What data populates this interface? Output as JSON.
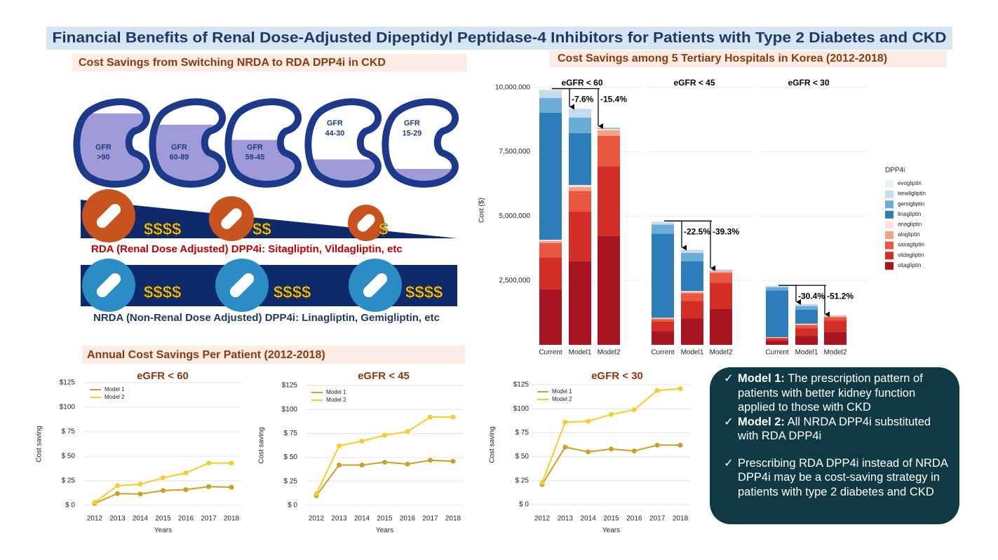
{
  "title": "Financial Benefits of Renal Dose-Adjusted Dipeptidyl Peptidase-4 Inhibitors for Patients with Type 2 Diabetes and CKD",
  "left_header": "Cost Savings from Switching NRDA to RDA DPP4i in CKD",
  "kidneys": [
    [
      "GFR",
      ">90"
    ],
    [
      "GFR",
      "60-89"
    ],
    [
      "GFR",
      "59-45"
    ],
    [
      "GFR",
      "44-30"
    ],
    [
      "GFR",
      "15-29"
    ]
  ],
  "rda_prices": [
    "$$$$",
    "$$",
    "$"
  ],
  "rda_caption": "RDA (Renal Dose Adjusted) DPP4i: Sitagliptin, Vildagliptin, etc",
  "nrda_prices": [
    "$$$$",
    "$$$$",
    "$$$$"
  ],
  "nrda_caption": "NRDA (Non-Renal Dose Adjusted) DPP4i: Linagliptin, Gemigliptin, etc",
  "bottom_header": "Annual Cost Savings Per Patient (2012-2018)",
  "notes": [
    {
      "label": "Model 1:",
      "text": "The prescription pattern of patients with better kidney function applied to those with CKD"
    },
    {
      "label": "Model 2:",
      "text": "All NRDA DPP4i substituted with RDA DPP4i"
    },
    {
      "text": "Prescribing RDA DPP4i instead of NRDA DPP4i may be a cost-saving strategy in patients with type 2 diabetes and CKD"
    }
  ],
  "chart_data": [
    {
      "type": "stacked-bar",
      "title": "Cost Savings among 5 Tertiary Hospitals in Korea (2012-2018)",
      "y_label": "Cost ($)",
      "legend_title": "DPP4i",
      "panels": [
        "eGFR  < 60",
        "eGFR  < 45",
        "eGFR  < 30"
      ],
      "categories": [
        "Current",
        "Model1",
        "Model2",
        "Current",
        "Model1",
        "Model2",
        "Current",
        "Model1",
        "Model2"
      ],
      "change_labels": [
        null,
        "-7.6%",
        "-15.4%",
        null,
        "-22.5%",
        "-39.3%",
        null,
        "-30.4%",
        "-51.2%"
      ],
      "ylim": [
        0,
        10400000
      ],
      "yticks": [
        {
          "value": 2500000,
          "label": "2,500,000"
        },
        {
          "value": 5000000,
          "label": "5,000,000"
        },
        {
          "value": 7500000,
          "label": "7,500,000"
        },
        {
          "value": 10000000,
          "label": "10,000,000"
        }
      ],
      "grid": true,
      "series": [
        {
          "name": "sitagliptin",
          "color": "#a8141f",
          "values": [
            2150000,
            3260000,
            4240000,
            540000,
            1030000,
            1410000,
            150000,
            350000,
            500000
          ]
        },
        {
          "name": "vildagliptin",
          "color": "#d42f26",
          "values": [
            1250000,
            1930000,
            2690000,
            360000,
            670000,
            1010000,
            100000,
            300000,
            450000
          ]
        },
        {
          "name": "saxagliptin",
          "color": "#e9573f",
          "values": [
            550000,
            790000,
            1190000,
            100000,
            300000,
            380000,
            30000,
            120000,
            130000
          ]
        },
        {
          "name": "alogliptin",
          "color": "#f4a384",
          "values": [
            80000,
            150000,
            220000,
            20000,
            50000,
            60000,
            10000,
            30000,
            30000
          ]
        },
        {
          "name": "anagliptin",
          "color": "#fce3dc",
          "values": [
            50000,
            80000,
            60000,
            30000,
            40000,
            30000,
            10000,
            20000,
            10000
          ]
        },
        {
          "name": "linagliptin",
          "color": "#2e7dbb",
          "values": [
            4940000,
            2020000,
            20000,
            3270000,
            1160000,
            10000,
            1820000,
            550000,
            10000
          ]
        },
        {
          "name": "gemigliptin",
          "color": "#6badd6",
          "values": [
            570000,
            600000,
            10000,
            350000,
            320000,
            10000,
            120000,
            140000,
            0
          ]
        },
        {
          "name": "teneligliptin",
          "color": "#c5dbee",
          "values": [
            300000,
            330000,
            10000,
            100000,
            110000,
            10000,
            50000,
            70000,
            0
          ]
        },
        {
          "name": "evogliptin",
          "color": "#ebf0f6",
          "values": [
            60000,
            30000,
            0,
            40000,
            40000,
            0,
            20000,
            30000,
            0
          ]
        }
      ]
    },
    {
      "type": "line",
      "title": "eGFR < 60",
      "x_label": "Years",
      "y_label": "Cost saving",
      "x": [
        2012,
        2013,
        2014,
        2015,
        2016,
        2017,
        2018
      ],
      "xlim": [
        2012,
        2018
      ],
      "xticks": [
        2012,
        2013,
        2014,
        2015,
        2016,
        2017,
        2018
      ],
      "ylim": [
        0,
        125
      ],
      "yticks": [
        {
          "value": 0,
          "label": "$ 0"
        },
        {
          "value": 25,
          "label": "$ 25"
        },
        {
          "value": 50,
          "label": "$ 50"
        },
        {
          "value": 75,
          "label": "$ 75"
        },
        {
          "value": 100,
          "label": "$100"
        },
        {
          "value": 125,
          "label": "$125"
        }
      ],
      "grid": true,
      "series": [
        {
          "name": "Model 1",
          "color": "#c9a028",
          "values": [
            2,
            12,
            11.5,
            15,
            16,
            19,
            18.5
          ]
        },
        {
          "name": "Model 2",
          "color": "#f7cd2e",
          "values": [
            3,
            20,
            21.5,
            28,
            33,
            43,
            43
          ]
        }
      ]
    },
    {
      "type": "line",
      "title": "eGFR < 45",
      "x_label": "Years",
      "y_label": "Cost saving",
      "x": [
        2012,
        2013,
        2014,
        2015,
        2016,
        2017,
        2018
      ],
      "xlim": [
        2012,
        2018
      ],
      "xticks": [
        2012,
        2013,
        2014,
        2015,
        2016,
        2017,
        2018
      ],
      "ylim": [
        0,
        125
      ],
      "yticks": [
        {
          "value": 0,
          "label": "$ 0"
        },
        {
          "value": 25,
          "label": "$ 25"
        },
        {
          "value": 50,
          "label": "$ 50"
        },
        {
          "value": 75,
          "label": "$ 75"
        },
        {
          "value": 100,
          "label": "$100"
        },
        {
          "value": 125,
          "label": "$125"
        }
      ],
      "grid": true,
      "series": [
        {
          "name": "Model 1",
          "color": "#c9a028",
          "values": [
            10,
            42,
            42,
            45,
            43,
            47,
            46
          ]
        },
        {
          "name": "Model 2",
          "color": "#f7cd2e",
          "values": [
            12,
            62,
            67,
            73,
            77,
            92,
            92
          ]
        }
      ]
    },
    {
      "type": "line",
      "title": "eGFR < 30",
      "x_label": "Years",
      "y_label": "Cost saving",
      "x": [
        2012,
        2013,
        2014,
        2015,
        2016,
        2017,
        2018
      ],
      "xlim": [
        2012,
        2018
      ],
      "xticks": [
        2012,
        2013,
        2014,
        2015,
        2016,
        2017,
        2018
      ],
      "ylim": [
        0,
        125
      ],
      "yticks": [
        {
          "value": 0,
          "label": "$ 0"
        },
        {
          "value": 25,
          "label": "$ 25"
        },
        {
          "value": 50,
          "label": "$ 50"
        },
        {
          "value": 75,
          "label": "$ 75"
        },
        {
          "value": 100,
          "label": "$100"
        },
        {
          "value": 125,
          "label": "$125"
        }
      ],
      "grid": true,
      "series": [
        {
          "name": "Model 1",
          "color": "#c9a028",
          "values": [
            21,
            60,
            55,
            58,
            56,
            62,
            62
          ]
        },
        {
          "name": "Model 2",
          "color": "#f7cd2e",
          "values": [
            23,
            86,
            87,
            94,
            99,
            119,
            121
          ]
        }
      ]
    }
  ]
}
